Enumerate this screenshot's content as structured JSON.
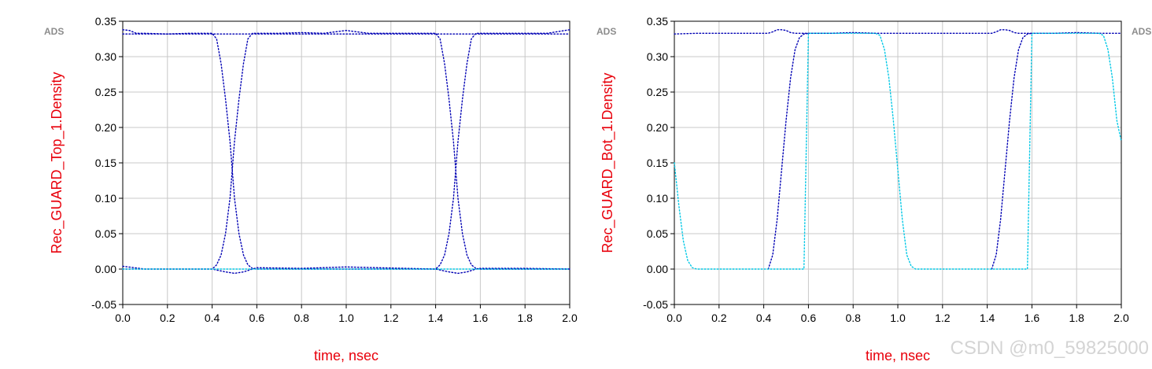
{
  "chart_data": [
    {
      "type": "line",
      "tag": "ADS",
      "xlabel": "time, nsec",
      "ylabel": "Rec_GUARD_Top_1.Density",
      "xlim": [
        0.0,
        2.0
      ],
      "ylim": [
        -0.05,
        0.35
      ],
      "grid": true,
      "x_ticks": [
        "0.0",
        "0.2",
        "0.4",
        "0.6",
        "0.8",
        "1.0",
        "1.2",
        "1.4",
        "1.6",
        "1.8",
        "2.0"
      ],
      "y_ticks": [
        "0.35",
        "0.30",
        "0.25",
        "0.20",
        "0.15",
        "0.10",
        "0.05",
        "0.00",
        "-0.05"
      ],
      "colors": {
        "primary": "#0000b4",
        "secondary": "#00c8e6"
      },
      "traces": [
        {
          "color": "primary",
          "x": [
            0.0,
            0.03,
            0.06,
            0.1,
            0.2,
            0.3,
            0.4,
            0.42,
            0.44,
            0.46,
            0.48,
            0.5,
            0.52,
            0.54,
            0.56,
            0.58,
            0.6,
            0.7,
            0.8,
            0.9,
            1.0,
            1.05,
            1.1,
            1.2,
            1.3,
            1.4,
            1.42,
            1.44,
            1.46,
            1.48,
            1.5,
            1.52,
            1.54,
            1.56,
            1.58,
            1.6,
            1.7,
            1.8,
            1.9,
            2.0
          ],
          "y": [
            0.338,
            0.337,
            0.333,
            0.333,
            0.332,
            0.333,
            0.333,
            0.325,
            0.29,
            0.24,
            0.18,
            0.1,
            0.05,
            0.02,
            0.006,
            0.001,
            0.0,
            0.0,
            0.0,
            0.0,
            0.0,
            0.0,
            0.0,
            0.0,
            0.0,
            0.0,
            0.006,
            0.02,
            0.05,
            0.1,
            0.18,
            0.24,
            0.29,
            0.325,
            0.333,
            0.333,
            0.333,
            0.333,
            0.333,
            0.338
          ]
        },
        {
          "color": "primary",
          "x": [
            0.0,
            0.1,
            0.2,
            0.3,
            0.4,
            0.42,
            0.44,
            0.46,
            0.48,
            0.5,
            0.52,
            0.54,
            0.56,
            0.58,
            0.6,
            0.7,
            0.8,
            0.9,
            1.0,
            1.05,
            1.1,
            1.2,
            1.3,
            1.4,
            1.42,
            1.44,
            1.46,
            1.48,
            1.5,
            1.52,
            1.54,
            1.56,
            1.58,
            1.6,
            1.7,
            1.8,
            1.9,
            2.0
          ],
          "y": [
            0.004,
            0.0,
            0.0,
            0.0,
            0.0,
            0.006,
            0.02,
            0.05,
            0.1,
            0.18,
            0.24,
            0.29,
            0.325,
            0.333,
            0.333,
            0.333,
            0.334,
            0.333,
            0.337,
            0.335,
            0.333,
            0.333,
            0.333,
            0.333,
            0.325,
            0.29,
            0.24,
            0.18,
            0.1,
            0.05,
            0.02,
            0.006,
            0.001,
            0.0,
            0.0,
            0.0,
            0.0,
            0.0
          ]
        },
        {
          "color": "primary",
          "x": [
            0.0,
            0.2,
            0.4,
            0.46,
            0.5,
            0.54,
            0.58,
            0.6,
            0.8,
            1.0,
            1.4,
            1.46,
            1.5,
            1.54,
            1.58,
            1.6,
            1.8,
            2.0
          ],
          "y": [
            0.0,
            0.0,
            0.0,
            -0.004,
            -0.006,
            -0.004,
            0.0,
            0.002,
            0.001,
            0.003,
            0.0,
            -0.004,
            -0.006,
            -0.004,
            0.0,
            0.001,
            0.001,
            0.0
          ]
        },
        {
          "color": "primary",
          "x": [
            0.0,
            2.0
          ],
          "y": [
            0.332,
            0.332
          ]
        },
        {
          "color": "secondary",
          "x": [
            0.0,
            2.0
          ],
          "y": [
            0.0,
            0.0
          ]
        }
      ]
    },
    {
      "type": "line",
      "tag": "ADS",
      "xlabel": "time, nsec",
      "ylabel": "Rec_GUARD_Bot_1.Density",
      "xlim": [
        0.0,
        2.0
      ],
      "ylim": [
        -0.05,
        0.35
      ],
      "grid": true,
      "x_ticks": [
        "0.0",
        "0.2",
        "0.4",
        "0.6",
        "0.8",
        "1.0",
        "1.2",
        "1.4",
        "1.6",
        "1.8",
        "2.0"
      ],
      "y_ticks": [
        "0.35",
        "0.30",
        "0.25",
        "0.20",
        "0.15",
        "0.10",
        "0.05",
        "0.00",
        "-0.05"
      ],
      "colors": {
        "primary": "#0000b4",
        "secondary": "#00c8e6"
      },
      "traces": [
        {
          "color": "primary",
          "x": [
            0.0,
            0.1,
            0.2,
            0.3,
            0.4,
            0.42,
            0.44,
            0.46,
            0.48,
            0.5,
            0.52,
            0.54,
            0.56,
            0.58,
            0.6,
            0.7,
            0.8,
            0.9,
            1.0,
            1.1,
            1.2,
            1.3,
            1.4,
            1.42,
            1.44,
            1.46,
            1.48,
            1.5,
            1.52,
            1.54,
            1.56,
            1.58,
            1.6,
            1.7,
            1.8,
            1.9,
            2.0
          ],
          "y": [
            0.332,
            0.333,
            0.333,
            0.333,
            0.333,
            0.333,
            0.335,
            0.338,
            0.338,
            0.337,
            0.334,
            0.333,
            0.333,
            0.333,
            0.333,
            0.333,
            0.334,
            0.333,
            0.333,
            0.333,
            0.333,
            0.333,
            0.333,
            0.333,
            0.335,
            0.338,
            0.338,
            0.337,
            0.334,
            0.333,
            0.333,
            0.333,
            0.333,
            0.333,
            0.334,
            0.333,
            0.333
          ]
        },
        {
          "color": "primary",
          "x": [
            0.42,
            0.44,
            0.46,
            0.48,
            0.5,
            0.52,
            0.54,
            0.56,
            0.58,
            0.6
          ],
          "y": [
            0.0,
            0.02,
            0.07,
            0.14,
            0.21,
            0.27,
            0.31,
            0.327,
            0.332,
            0.333
          ]
        },
        {
          "color": "primary",
          "x": [
            1.42,
            1.44,
            1.46,
            1.48,
            1.5,
            1.52,
            1.54,
            1.56,
            1.58,
            1.6
          ],
          "y": [
            0.0,
            0.02,
            0.07,
            0.14,
            0.21,
            0.27,
            0.31,
            0.327,
            0.332,
            0.333
          ]
        },
        {
          "color": "secondary",
          "x": [
            0.0,
            0.02,
            0.04,
            0.06,
            0.08,
            0.1,
            0.2,
            0.3,
            0.4,
            0.42,
            0.44,
            0.46,
            0.48,
            0.5,
            0.52,
            0.54,
            0.56,
            0.58,
            0.6,
            0.7,
            0.8,
            0.9,
            0.92,
            0.94,
            0.96,
            0.98,
            1.0,
            1.02,
            1.04,
            1.06,
            1.08,
            1.1,
            1.2,
            1.3,
            1.4,
            1.42,
            1.44,
            1.46,
            1.48,
            1.5,
            1.52,
            1.54,
            1.56,
            1.58,
            1.6,
            1.7,
            1.8,
            1.9,
            1.92,
            1.94,
            1.96,
            1.98,
            2.0
          ],
          "y": [
            0.15,
            0.09,
            0.04,
            0.012,
            0.002,
            0.0,
            0.0,
            0.0,
            0.0,
            0.0,
            0.0,
            0.0,
            0.0,
            0.0,
            0.0,
            0.0,
            0.0,
            0.0,
            0.333,
            0.333,
            0.333,
            0.333,
            0.33,
            0.31,
            0.27,
            0.21,
            0.14,
            0.07,
            0.02,
            0.004,
            0.0,
            0.0,
            0.0,
            0.0,
            0.0,
            0.0,
            0.0,
            0.0,
            0.0,
            0.0,
            0.0,
            0.0,
            0.0,
            0.0,
            0.333,
            0.333,
            0.333,
            0.333,
            0.33,
            0.31,
            0.27,
            0.21,
            0.18
          ]
        }
      ]
    }
  ],
  "tags": {
    "right_edge": "ADS"
  },
  "watermark": "CSDN @m0_59825000"
}
